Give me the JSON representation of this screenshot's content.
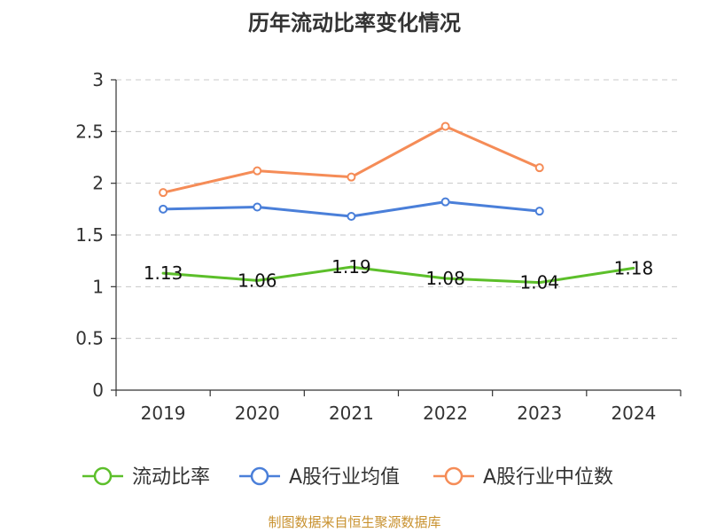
{
  "chart_data": {
    "type": "line",
    "title": "历年流动比率变化情况",
    "categories": [
      "2019",
      "2020",
      "2021",
      "2022",
      "2023",
      "2024"
    ],
    "ylim": [
      0,
      3
    ],
    "yticks": [
      "0",
      "0.5",
      "1",
      "1.5",
      "2",
      "2.5",
      "3"
    ],
    "ytick_values": [
      0,
      0.5,
      1,
      1.5,
      2,
      2.5,
      3
    ],
    "grid": true,
    "legend_position": "bottom",
    "series": [
      {
        "name": "流动比率",
        "color": "#5cbf2a",
        "values": [
          1.13,
          1.06,
          1.19,
          1.08,
          1.04,
          1.18
        ],
        "labels": [
          "1.13",
          "1.06",
          "1.19",
          "1.08",
          "1.04",
          "1.18"
        ],
        "show_labels": true,
        "show_markers": false
      },
      {
        "name": "A股行业均值",
        "color": "#4a7fd9",
        "values": [
          1.75,
          1.77,
          1.68,
          1.82,
          1.73,
          null
        ],
        "show_labels": false,
        "show_markers": true
      },
      {
        "name": "A股行业中位数",
        "color": "#f58c57",
        "values": [
          1.91,
          2.12,
          2.06,
          2.55,
          2.15,
          null
        ],
        "show_labels": false,
        "show_markers": true
      }
    ],
    "source": "制图数据来自恒生聚源数据库"
  }
}
